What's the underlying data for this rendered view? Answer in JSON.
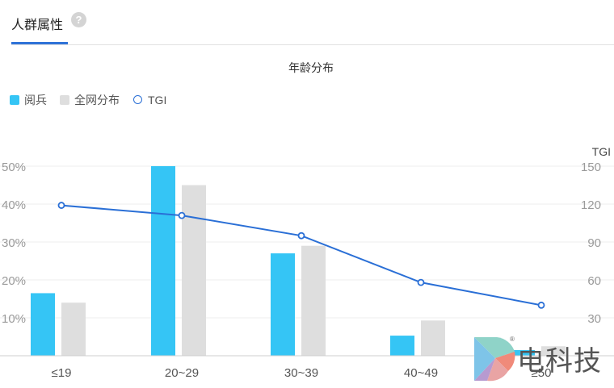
{
  "header": {
    "tab_title": "人群属性",
    "help_icon": "question-circle-icon"
  },
  "chart_data": {
    "type": "bar",
    "title": "年龄分布",
    "categories": [
      "≤19",
      "20~29",
      "30~39",
      "40~49",
      "≥50"
    ],
    "series": [
      {
        "name": "阅兵",
        "type": "bar",
        "axis": "left",
        "color": "#35c5f5",
        "values": [
          16.5,
          50,
          27,
          5.3,
          1.5
        ]
      },
      {
        "name": "全网分布",
        "type": "bar",
        "axis": "left",
        "color": "#dedede",
        "values": [
          14,
          45,
          29,
          9.3,
          2.5
        ]
      },
      {
        "name": "TGI",
        "type": "line",
        "axis": "right",
        "color": "#2a6fd6",
        "values": [
          119,
          111,
          95,
          58,
          40
        ]
      }
    ],
    "y_left": {
      "ticks": [
        "10%",
        "20%",
        "30%",
        "40%",
        "50%"
      ],
      "tick_values": [
        10,
        20,
        30,
        40,
        50
      ],
      "range": [
        0,
        50
      ]
    },
    "y_right": {
      "label": "TGI",
      "ticks": [
        "30",
        "60",
        "90",
        "120",
        "150"
      ],
      "tick_values": [
        30,
        60,
        90,
        120,
        150
      ],
      "range": [
        0,
        150
      ]
    },
    "grid": true,
    "legend_position": "top-left"
  },
  "watermark": {
    "text": "电科技",
    "reg_mark": "®"
  }
}
